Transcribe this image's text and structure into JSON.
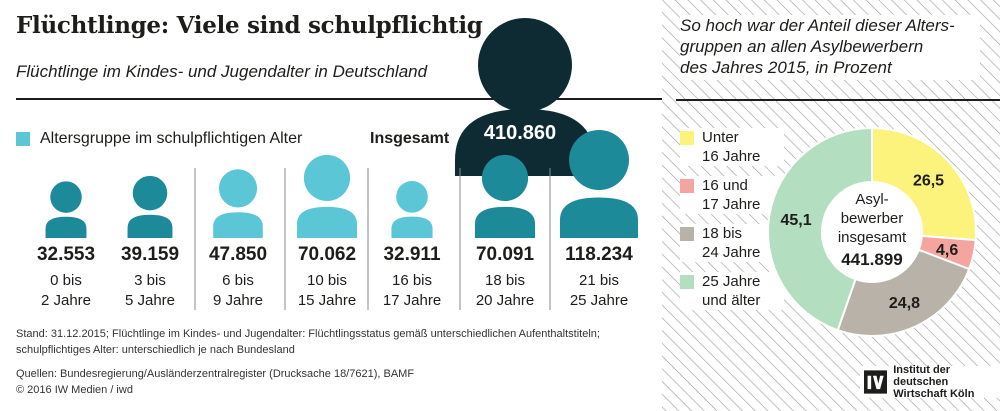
{
  "header": {
    "title": "Flüchtlinge: Viele sind schulpflichtig",
    "subtitle": "Flüchtlinge im Kindes- und Jugendalter in Deutschland"
  },
  "legend": {
    "label": "Altersgruppe im schulpflichtigen Alter"
  },
  "total": {
    "label": "Insgesamt",
    "value": "410.860",
    "number": 410860
  },
  "colors": {
    "school_age": "#5bc7d6",
    "other_age": "#1c8a98",
    "total": "#0e2b34",
    "pie_under16": "#fbf37b",
    "pie_16_17": "#f5a5a0",
    "pie_18_24": "#b8b2a8",
    "pie_25plus": "#b3dfc0"
  },
  "chart_data": [
    {
      "type": "bar",
      "title": "Flüchtlinge im Kindes- und Jugendalter in Deutschland",
      "categories": [
        {
          "line1": "0 bis",
          "line2": "2 Jahre"
        },
        {
          "line1": "3 bis",
          "line2": "5 Jahre"
        },
        {
          "line1": "6 bis",
          "line2": "9 Jahre"
        },
        {
          "line1": "10 bis",
          "line2": "15 Jahre"
        },
        {
          "line1": "16 bis",
          "line2": "17 Jahre"
        },
        {
          "line1": "18 bis",
          "line2": "20 Jahre"
        },
        {
          "line1": "21 bis",
          "line2": "25 Jahre"
        }
      ],
      "values": [
        32553,
        39159,
        47850,
        70062,
        32911,
        70091,
        118234
      ],
      "labels": [
        "32.553",
        "39.159",
        "47.850",
        "70.062",
        "32.911",
        "70.091",
        "118.234"
      ],
      "school_age": [
        false,
        false,
        true,
        true,
        true,
        false,
        false
      ],
      "total": 410860
    },
    {
      "type": "pie",
      "title": "So hoch war der Anteil dieser Altersgruppen an allen Asylbewerbern des Jahres 2015, in Prozent",
      "title_lines": [
        "So hoch war der Anteil dieser Alters-",
        "gruppen an allen Asylbewerbern",
        "des Jahres 2015, in Prozent"
      ],
      "center_lines": [
        "Asyl-",
        "bewerber",
        "insgesamt"
      ],
      "center_value": "441.899",
      "center_number": 441899,
      "slices": [
        {
          "name": "Unter 16 Jahre",
          "name_lines": [
            "Unter",
            "16 Jahre"
          ],
          "value": 26.5,
          "label": "26,5"
        },
        {
          "name": "16 und 17 Jahre",
          "name_lines": [
            "16 und",
            "17 Jahre"
          ],
          "value": 4.6,
          "label": "4,6"
        },
        {
          "name": "18 bis 24 Jahre",
          "name_lines": [
            "18 bis",
            "24 Jahre"
          ],
          "value": 24.8,
          "label": "24,8"
        },
        {
          "name": "25 Jahre und älter",
          "name_lines": [
            "25 Jahre",
            "und älter"
          ],
          "value": 45.1,
          "label": "45,1"
        }
      ]
    }
  ],
  "footnote": "Stand: 31.12.2015; Flüchtlinge im Kindes- und Jugendalter: Flüchtlingsstatus gemäß unterschiedlichen Aufenthaltstiteln; schulpflichtiges Alter: unterschiedlich je nach Bundesland",
  "sources": {
    "line1": "Quellen: Bundesregierung/Ausländerzentralregister (Drucksache 18/7621), BAMF",
    "line2": "© 2016 IW Medien / iwd"
  },
  "logo": {
    "line1": "Institut der deutschen",
    "line2": "Wirtschaft Köln"
  }
}
